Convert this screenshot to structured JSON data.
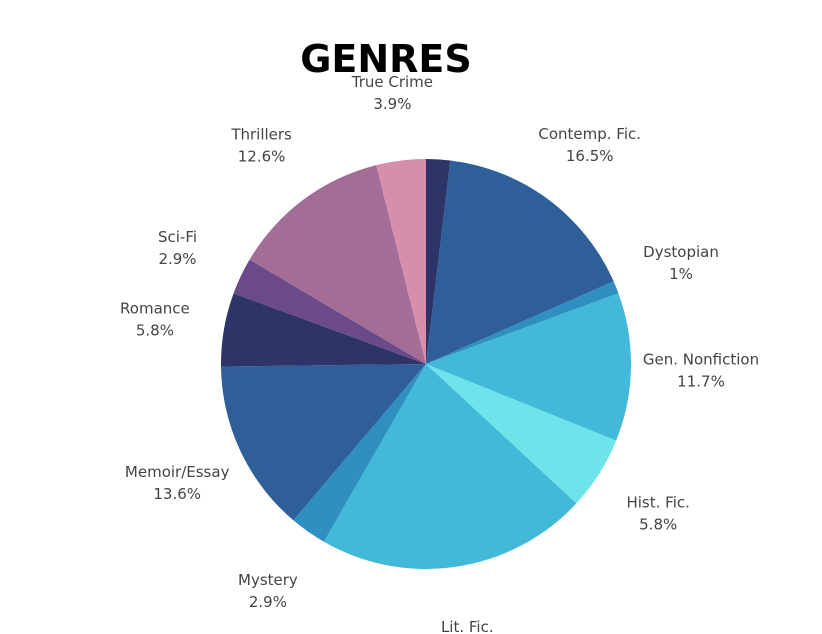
{
  "chart_data": {
    "type": "pie",
    "title": "GENRES",
    "start_angle_deg": 0,
    "direction": "clockwise",
    "slices": [
      {
        "label": "",
        "value_text": "",
        "value": 1.9,
        "color": "#2e3467"
      },
      {
        "label": "Contemp. Fic.",
        "value_text": "16.5%",
        "value": 16.5,
        "color": "#2e5f98"
      },
      {
        "label": "Dystopian",
        "value_text": "1%",
        "value": 1.0,
        "color": "#2e8fc0"
      },
      {
        "label": "Gen. Nonfiction",
        "value_text": "11.7%",
        "value": 11.7,
        "color": "#42b9d8"
      },
      {
        "label": "Hist. Fic.",
        "value_text": "5.8%",
        "value": 5.8,
        "color": "#6ce4ea"
      },
      {
        "label": "Lit. Fic.",
        "value_text": "21.4%",
        "value": 21.4,
        "color": "#42b9d8"
      },
      {
        "label": "Mystery",
        "value_text": "2.9%",
        "value": 2.9,
        "color": "#2e8fc0"
      },
      {
        "label": "Memoir/Essay",
        "value_text": "13.6%",
        "value": 13.6,
        "color": "#2e5f98"
      },
      {
        "label": "Romance",
        "value_text": "5.8%",
        "value": 5.8,
        "color": "#2e3467"
      },
      {
        "label": "Sci-Fi",
        "value_text": "2.9%",
        "value": 2.9,
        "color": "#6a4a88"
      },
      {
        "label": "Thrillers",
        "value_text": "12.6%",
        "value": 12.6,
        "color": "#a46d96"
      },
      {
        "label": "True Crime",
        "value_text": "3.9%",
        "value": 3.9,
        "color": "#d68fab"
      }
    ]
  }
}
